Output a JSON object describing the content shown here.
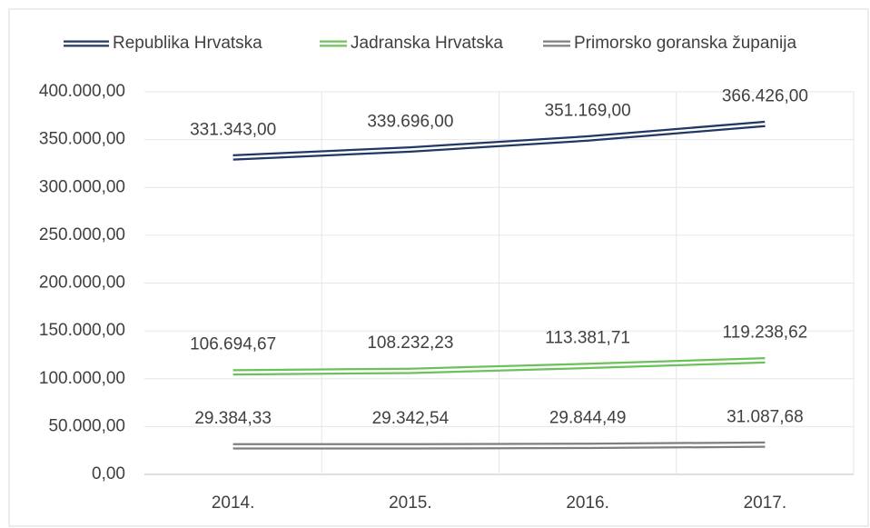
{
  "chart_data": {
    "type": "line",
    "categories": [
      "2014.",
      "2015.",
      "2016.",
      "2017."
    ],
    "series": [
      {
        "name": "Republika Hrvatska",
        "color": "#1f3864",
        "values": [
          331343,
          339696,
          351169,
          366426
        ],
        "value_labels": [
          "331.343,00",
          "339.696,00",
          "351.169,00",
          "366.426,00"
        ]
      },
      {
        "name": "Jadranska Hrvatska",
        "color": "#6cc25a",
        "values": [
          106694.67,
          108232.23,
          113381.71,
          119238.62
        ],
        "value_labels": [
          "106.694,67",
          "108.232,23",
          "113.381,71",
          "119.238,62"
        ]
      },
      {
        "name": "Primorsko goranska županija",
        "color": "#7f7f7f",
        "values": [
          29384.33,
          29342.54,
          29844.49,
          31087.68
        ],
        "value_labels": [
          "29.384,33",
          "29.342,54",
          "29.844,49",
          "31.087,68"
        ]
      }
    ],
    "ylim": [
      0,
      400000
    ],
    "yticks": [
      {
        "value": 0,
        "label": "0,00"
      },
      {
        "value": 50000,
        "label": "50.000,00"
      },
      {
        "value": 100000,
        "label": "100.000,00"
      },
      {
        "value": 150000,
        "label": "150.000,00"
      },
      {
        "value": 200000,
        "label": "200.000,00"
      },
      {
        "value": 250000,
        "label": "250.000,00"
      },
      {
        "value": 300000,
        "label": "300.000,00"
      },
      {
        "value": 350000,
        "label": "350.000,00"
      },
      {
        "value": 400000,
        "label": "400.000,00"
      }
    ],
    "grid": true,
    "legend": "top"
  }
}
